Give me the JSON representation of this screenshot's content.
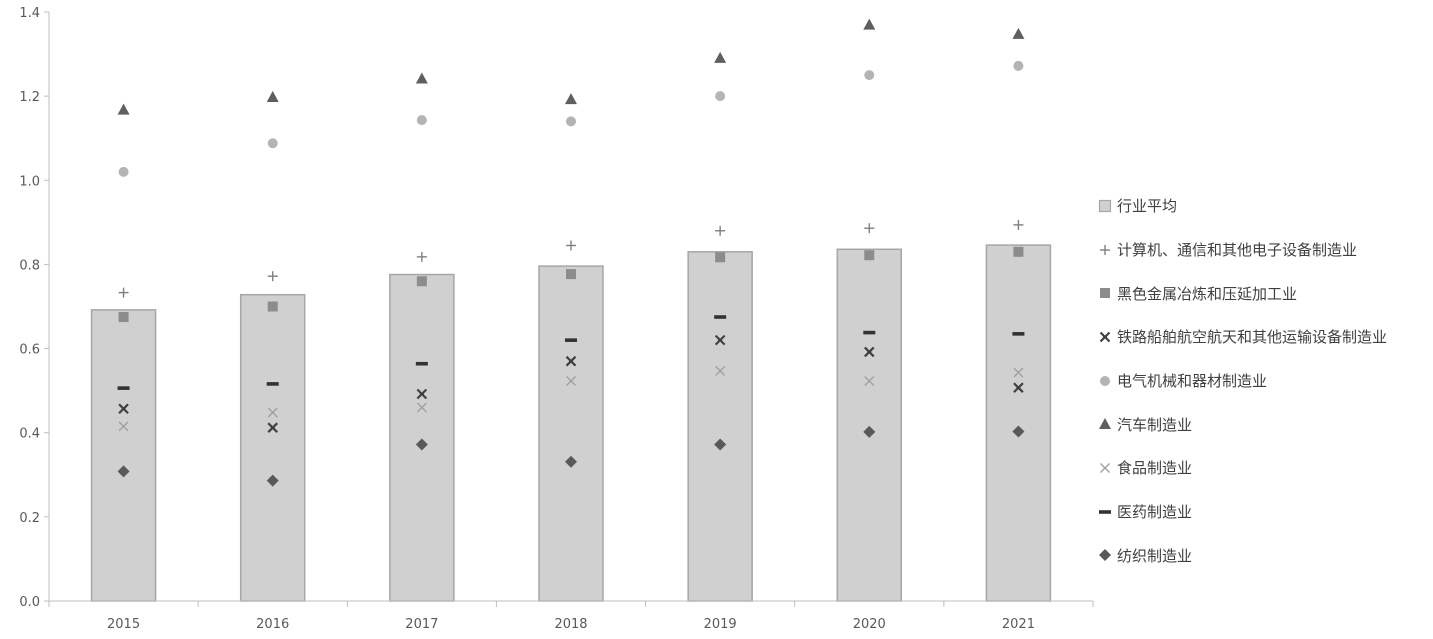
{
  "chart_data": {
    "type": "bar",
    "categories": [
      "2015",
      "2016",
      "2017",
      "2018",
      "2019",
      "2020",
      "2021"
    ],
    "ylim": [
      0,
      1.4
    ],
    "yticks": [
      "0.0",
      "0.2",
      "0.4",
      "0.6",
      "0.8",
      "1.0",
      "1.2",
      "1.4"
    ],
    "grid": false,
    "legend_position": "right",
    "bar_series": {
      "name": "行业平均",
      "values": [
        0.692,
        0.728,
        0.776,
        0.796,
        0.83,
        0.836,
        0.846
      ],
      "color": "#d0d0d0",
      "marker": "square"
    },
    "marker_series": [
      {
        "name": "计算机、通信和其他电子设备制造业",
        "marker": "plus",
        "color": "#7f7f7f",
        "values": [
          0.733,
          0.772,
          0.818,
          0.845,
          0.88,
          0.886,
          0.894
        ]
      },
      {
        "name": "黑色金属冶炼和压延加工业",
        "marker": "square",
        "color": "#8c8c8c",
        "values": [
          0.675,
          0.7,
          0.76,
          0.777,
          0.817,
          0.822,
          0.83
        ]
      },
      {
        "name": "铁路船舶航空航天和其他运输设备制造业",
        "marker": "star",
        "color": "#404040",
        "values": [
          0.457,
          0.412,
          0.492,
          0.57,
          0.62,
          0.592,
          0.507
        ]
      },
      {
        "name": "电气机械和器材制造业",
        "marker": "circle",
        "color": "#b4b4b4",
        "values": [
          1.02,
          1.088,
          1.143,
          1.14,
          1.2,
          1.25,
          1.272
        ]
      },
      {
        "name": "汽车制造业",
        "marker": "triangle",
        "color": "#5f5f5f",
        "values": [
          1.168,
          1.198,
          1.242,
          1.193,
          1.291,
          1.37,
          1.348
        ]
      },
      {
        "name": "食品制造业",
        "marker": "x",
        "color": "#a0a0a0",
        "values": [
          0.415,
          0.448,
          0.46,
          0.523,
          0.547,
          0.523,
          0.543
        ]
      },
      {
        "name": "医药制造业",
        "marker": "dash",
        "color": "#333333",
        "values": [
          0.506,
          0.516,
          0.564,
          0.62,
          0.675,
          0.638,
          0.635
        ]
      },
      {
        "name": "纺织制造业",
        "marker": "diamond",
        "color": "#595959",
        "values": [
          0.308,
          0.286,
          0.372,
          0.331,
          0.372,
          0.402,
          0.403
        ]
      }
    ]
  }
}
